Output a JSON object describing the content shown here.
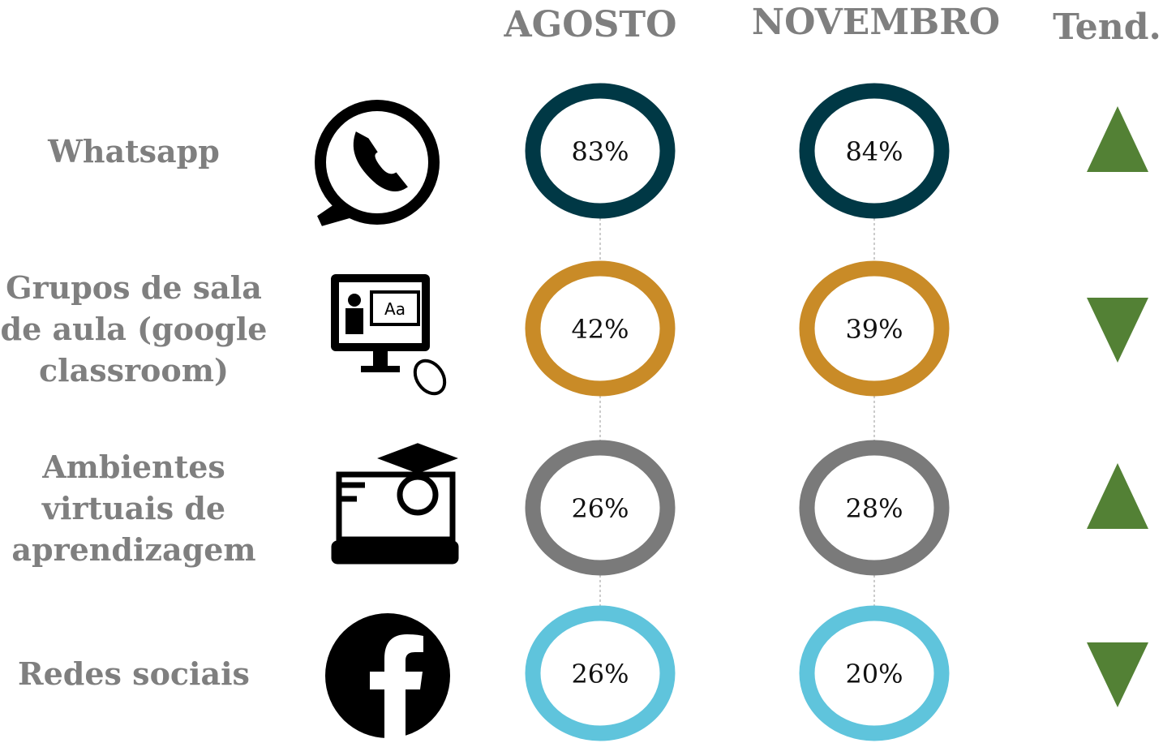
{
  "header": {
    "columns": [
      "AGOSTO",
      "NOVEMBRO",
      "Tend."
    ]
  },
  "rows": [
    {
      "label": [
        "Whatsapp"
      ],
      "agosto": "83%",
      "novembro": "84%",
      "trend": "up",
      "color": "#003845"
    },
    {
      "label": [
        "Grupos de sala",
        "de aula (google",
        "classroom)"
      ],
      "agosto": "42%",
      "novembro": "39%",
      "trend": "down",
      "color": "#c98b27"
    },
    {
      "label": [
        "Ambientes",
        "virtuais de",
        "aprendizagem"
      ],
      "agosto": "26%",
      "novembro": "28%",
      "trend": "up",
      "color": "#7a7a7a"
    },
    {
      "label": [
        "Redes sociais"
      ],
      "agosto": "26%",
      "novembro": "20%",
      "trend": "down",
      "color": "#5fc4dc"
    }
  ]
}
